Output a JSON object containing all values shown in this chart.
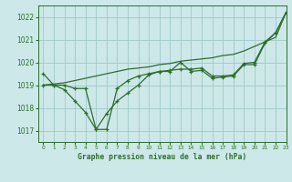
{
  "title": "Graphe pression niveau de la mer (hPa)",
  "background_color": "#cde8e8",
  "grid_color": "#a0c8c8",
  "line_color": "#2d6e2d",
  "xlim": [
    -0.5,
    23
  ],
  "ylim": [
    1016.5,
    1022.5
  ],
  "yticks": [
    1017,
    1018,
    1019,
    1020,
    1021,
    1022
  ],
  "xticks": [
    0,
    1,
    2,
    3,
    4,
    5,
    6,
    7,
    8,
    9,
    10,
    11,
    12,
    13,
    14,
    15,
    16,
    17,
    18,
    19,
    20,
    21,
    22,
    23
  ],
  "series_measured": [
    1019.5,
    1019.0,
    1018.8,
    1018.3,
    1017.8,
    1017.05,
    1017.75,
    1018.3,
    1018.65,
    1019.0,
    1019.45,
    1019.6,
    1019.6,
    1020.0,
    1019.6,
    1019.65,
    1019.3,
    1019.35,
    1019.4,
    1019.9,
    1019.9,
    1020.85,
    1021.3,
    1022.2
  ],
  "series_trend1": [
    1019.0,
    1019.0,
    1019.0,
    1018.85,
    1018.85,
    1017.05,
    1017.05,
    1018.85,
    1019.2,
    1019.4,
    1019.5,
    1019.6,
    1019.65,
    1019.7,
    1019.7,
    1019.75,
    1019.4,
    1019.4,
    1019.45,
    1019.95,
    1020.0,
    1020.9,
    1021.3,
    1022.2
  ],
  "series_linear": [
    1019.0,
    1019.05,
    1019.1,
    1019.2,
    1019.3,
    1019.4,
    1019.5,
    1019.6,
    1019.7,
    1019.75,
    1019.8,
    1019.9,
    1019.95,
    1020.05,
    1020.1,
    1020.15,
    1020.2,
    1020.3,
    1020.35,
    1020.5,
    1020.7,
    1020.9,
    1021.1,
    1022.2
  ]
}
